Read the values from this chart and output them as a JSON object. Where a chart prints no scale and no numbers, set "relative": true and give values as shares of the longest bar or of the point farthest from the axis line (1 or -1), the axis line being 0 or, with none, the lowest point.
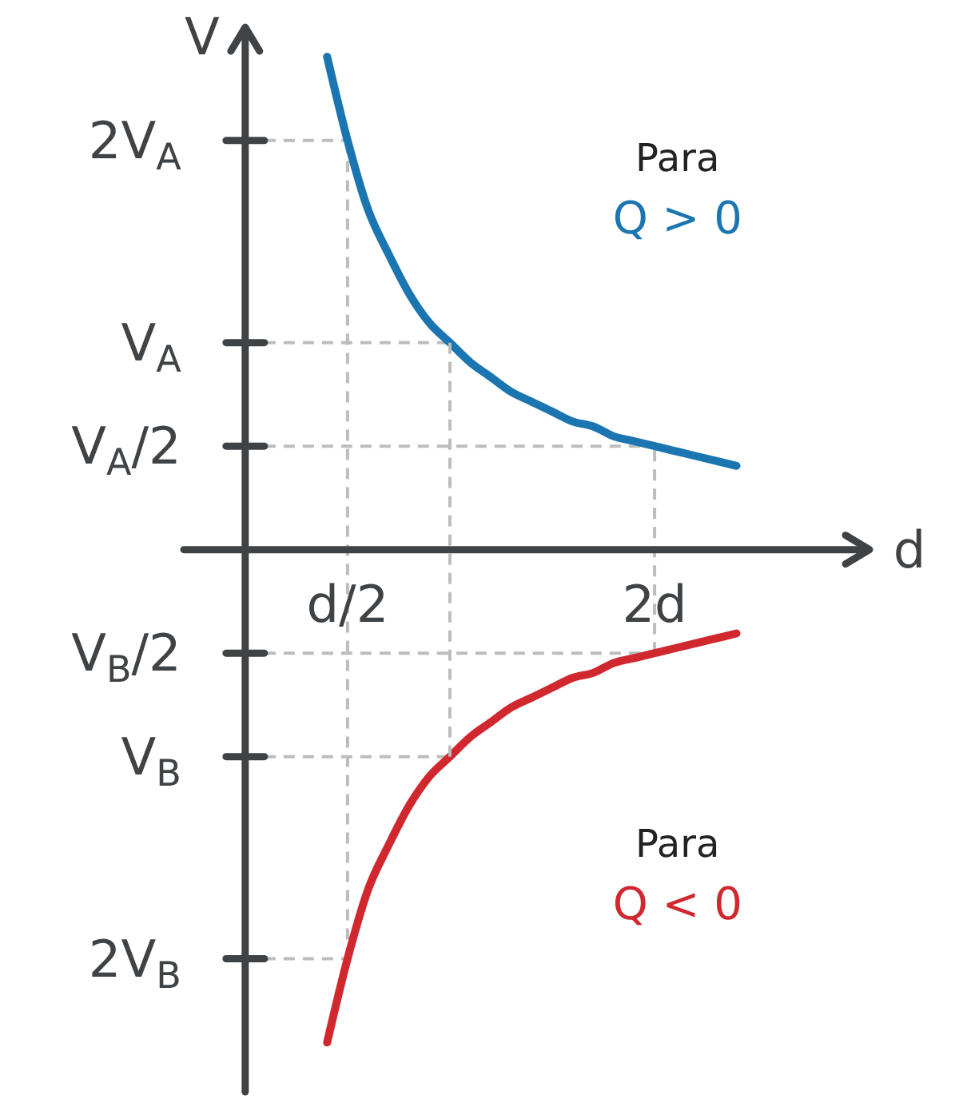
{
  "chart_data": {
    "type": "line",
    "relative": true,
    "xlabel": "d",
    "ylabel": "V",
    "marker": "none",
    "line_style": "solid",
    "categories": [
      null,
      null,
      null,
      null,
      null,
      "d/2",
      null,
      null,
      null,
      null,
      null,
      null,
      null,
      null,
      null,
      null,
      null,
      null,
      null,
      null,
      "2d",
      null,
      null,
      null,
      null
    ],
    "series": [
      {
        "name": "Q > 0",
        "color": "#1b75b1",
        "values": [
          null,
          null,
          null,
          null,
          1,
          0.83,
          0.69,
          0.6,
          0.52,
          0.46,
          0.42,
          0.38,
          0.35,
          0.32,
          0.3,
          0.28,
          0.26,
          0.25,
          0.23,
          0.22,
          0.21,
          0.2,
          0.19,
          0.18,
          0.17
        ]
      },
      {
        "name": "Q < 0",
        "color": "#d0282e",
        "values": [
          null,
          null,
          null,
          null,
          -1,
          -0.83,
          -0.69,
          -0.6,
          -0.52,
          -0.46,
          -0.42,
          -0.38,
          -0.35,
          -0.32,
          -0.3,
          -0.28,
          -0.26,
          -0.25,
          -0.23,
          -0.22,
          -0.21,
          -0.2,
          -0.19,
          -0.18,
          -0.17
        ]
      }
    ],
    "ref_lines": [
      {
        "axis": "y",
        "value": 0.83,
        "label": "2V$_{A}$",
        "color": "#bdbdbd",
        "line_style": "dashed"
      },
      {
        "axis": "y",
        "value": 0.42,
        "label": "V$_{A}$",
        "color": "#bdbdbd",
        "line_style": "dashed"
      },
      {
        "axis": "y",
        "value": 0.21,
        "label": "V$_{A}$/2",
        "color": "#bdbdbd",
        "line_style": "dashed"
      },
      {
        "axis": "y",
        "value": -0.21,
        "label": "V$_{B}$/2",
        "color": "#bdbdbd",
        "line_style": "dashed"
      },
      {
        "axis": "y",
        "value": -0.42,
        "label": "V$_{B}$",
        "color": "#bdbdbd",
        "line_style": "dashed"
      },
      {
        "axis": "y",
        "value": -0.83,
        "label": "2V$_{B}$",
        "color": "#bdbdbd",
        "line_style": "dashed"
      },
      {
        "axis": "x",
        "value": "d/2",
        "color": "#bdbdbd",
        "line_style": "dashed"
      },
      {
        "axis": "x",
        "value": "2d",
        "color": "#bdbdbd",
        "line_style": "dashed"
      }
    ],
    "annotations": [
      "Para",
      "Para"
    ]
  }
}
